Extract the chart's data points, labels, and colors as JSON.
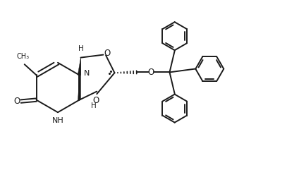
{
  "bg_color": "#ffffff",
  "line_color": "#1a1a1a",
  "line_width": 1.4,
  "fig_width": 4.24,
  "fig_height": 2.48,
  "dpi": 100,
  "xlim": [
    0,
    10.6
  ],
  "ylim": [
    0,
    6.2
  ]
}
